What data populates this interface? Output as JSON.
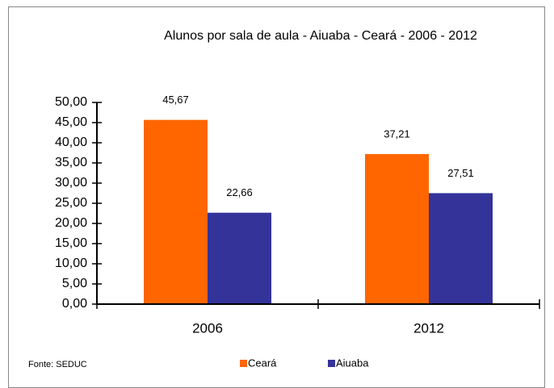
{
  "chart_data": {
    "type": "bar",
    "title": "Alunos por sala de aula - Aiuaba - Ceará - 2006 - 2012",
    "categories": [
      "2006",
      "2012"
    ],
    "series": [
      {
        "name": "Ceará",
        "color": "#ff6600",
        "values": [
          45.67,
          37.21
        ],
        "value_labels": [
          "45,67",
          "37,21"
        ]
      },
      {
        "name": "Aiuaba",
        "color": "#333399",
        "values": [
          22.66,
          27.51
        ],
        "value_labels": [
          "22,66",
          "27,51"
        ]
      }
    ],
    "ylim": [
      0,
      50
    ],
    "yticks": [
      {
        "value": 0,
        "label": "0,00"
      },
      {
        "value": 5,
        "label": "5,00"
      },
      {
        "value": 10,
        "label": "10,00"
      },
      {
        "value": 15,
        "label": "15,00"
      },
      {
        "value": 20,
        "label": "20,00"
      },
      {
        "value": 25,
        "label": "25,00"
      },
      {
        "value": 30,
        "label": "30,00"
      },
      {
        "value": 35,
        "label": "35,00"
      },
      {
        "value": 40,
        "label": "40,00"
      },
      {
        "value": 45,
        "label": "45,00"
      },
      {
        "value": 50,
        "label": "50,00"
      }
    ],
    "source": "Fonte: SEDUC",
    "legend": "bottom"
  }
}
